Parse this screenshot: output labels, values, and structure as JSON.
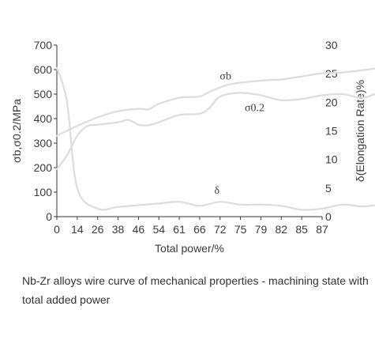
{
  "caption": "Nb-Zr alloys wire curve of mechanical properties - machining state with total added power",
  "chart_data": {
    "type": "line",
    "xlabel": "Total power/%",
    "ylabel_left": "σb,σ0.2/MPa",
    "ylabel_right": "δ(Elongation Rate)%",
    "categories": [
      "0",
      "14",
      "26",
      "38",
      "46",
      "54",
      "61",
      "66",
      "72",
      "75",
      "79",
      "82",
      "85",
      "87"
    ],
    "ylim_left": [
      0,
      700
    ],
    "yticks_left": [
      0,
      100,
      200,
      300,
      400,
      500,
      600,
      700
    ],
    "ylim_right": [
      0,
      30
    ],
    "yticks_right": [
      0,
      5,
      10,
      15,
      20,
      25,
      30
    ],
    "grid": false,
    "line_color": "#dcdcdc",
    "series": [
      {
        "name": "σb",
        "axis": "left",
        "points": [
          [
            0,
            330
          ],
          [
            1,
            370
          ],
          [
            2,
            405
          ],
          [
            3,
            430
          ],
          [
            4,
            440
          ],
          [
            4.5,
            438
          ],
          [
            5,
            460
          ],
          [
            6,
            485
          ],
          [
            7,
            490
          ],
          [
            7.5,
            510
          ],
          [
            8.5,
            540
          ],
          [
            10,
            555
          ],
          [
            11,
            560
          ],
          [
            12,
            572
          ],
          [
            13,
            585
          ],
          [
            14,
            588
          ],
          [
            15,
            598
          ],
          [
            16,
            608
          ]
        ]
      },
      {
        "name": "σ0.2",
        "axis": "left",
        "points": [
          [
            0,
            195
          ],
          [
            0.5,
            250
          ],
          [
            1,
            330
          ],
          [
            1.5,
            370
          ],
          [
            2,
            375
          ],
          [
            3,
            385
          ],
          [
            3.5,
            395
          ],
          [
            4,
            375
          ],
          [
            4.5,
            373
          ],
          [
            5,
            385
          ],
          [
            6,
            415
          ],
          [
            7,
            420
          ],
          [
            7.5,
            445
          ],
          [
            8,
            490
          ],
          [
            9,
            505
          ],
          [
            10,
            495
          ],
          [
            11,
            475
          ],
          [
            12,
            480
          ],
          [
            13,
            495
          ],
          [
            14,
            500
          ],
          [
            15,
            485
          ],
          [
            16,
            515
          ]
        ]
      },
      {
        "name": "δ",
        "axis": "right",
        "points": [
          [
            0,
            26
          ],
          [
            0.5,
            20
          ],
          [
            1,
            5
          ],
          [
            2,
            1.4
          ],
          [
            3,
            1.7
          ],
          [
            4,
            2.0
          ],
          [
            5,
            2.3
          ],
          [
            6,
            2.6
          ],
          [
            7,
            1.9
          ],
          [
            8,
            2.6
          ],
          [
            9,
            2.1
          ],
          [
            10,
            2.1
          ],
          [
            11,
            1.9
          ],
          [
            12,
            1.2
          ],
          [
            13,
            1.4
          ],
          [
            14,
            2.1
          ],
          [
            15,
            1.8
          ],
          [
            16,
            2.2
          ]
        ]
      }
    ]
  }
}
